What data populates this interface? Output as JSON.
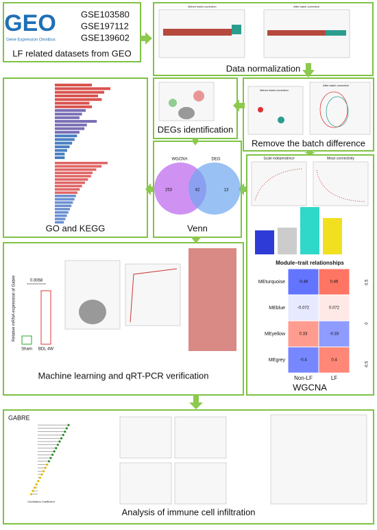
{
  "datasets": {
    "logo": "GEO",
    "logo_caption": "Gene Expression Omnibus",
    "ids": [
      "GSE103580",
      "GSE197112",
      "GSE139602"
    ],
    "label": "LF related datasets from GEO"
  },
  "normalization": {
    "titles": [
      "Before batch correction",
      "After batch correction"
    ],
    "label": "Data normalization"
  },
  "degs": {
    "label": "DEGs identification"
  },
  "batch": {
    "titles": [
      "Before batch correction",
      "After batch correction"
    ],
    "label": "Remove the batch difference"
  },
  "go_kegg": {
    "label": "GO and KEGG"
  },
  "venn": {
    "sets": [
      "WGCNA",
      "DEG"
    ],
    "counts": [
      253,
      42,
      13
    ],
    "label": "Venn"
  },
  "wgcna": {
    "plot_titles": [
      "Scale independence",
      "Mean connectivity"
    ],
    "heatmap_title": "Module–trait relationships",
    "modules": [
      "MEturquoise",
      "MEblue",
      "MEyellow",
      "MEgrey"
    ],
    "traits": [
      "Non-LF",
      "LF"
    ],
    "values": [
      [
        -0.46,
        0.46
      ],
      [
        -0.072,
        0.072
      ],
      [
        0.33,
        -0.33
      ],
      [
        -0.4,
        0.4
      ]
    ],
    "scale": [
      {
        "value": 0.5,
        "label": "0.5"
      },
      {
        "value": 0,
        "label": "0"
      },
      {
        "value": -0.5,
        "label": "-0.5"
      }
    ],
    "label": "WGCNA"
  },
  "ml": {
    "y_label": "Relative mRNA expression of Gabre",
    "p_value": "0.0068",
    "groups": [
      "Sham",
      "BDL 4W"
    ],
    "label": "Machine learning and qRT-PCR verification"
  },
  "immune": {
    "gene": "GABRE",
    "x_label": "Correlation Coefficient",
    "label": "Analysis of immune cell infiltration"
  }
}
